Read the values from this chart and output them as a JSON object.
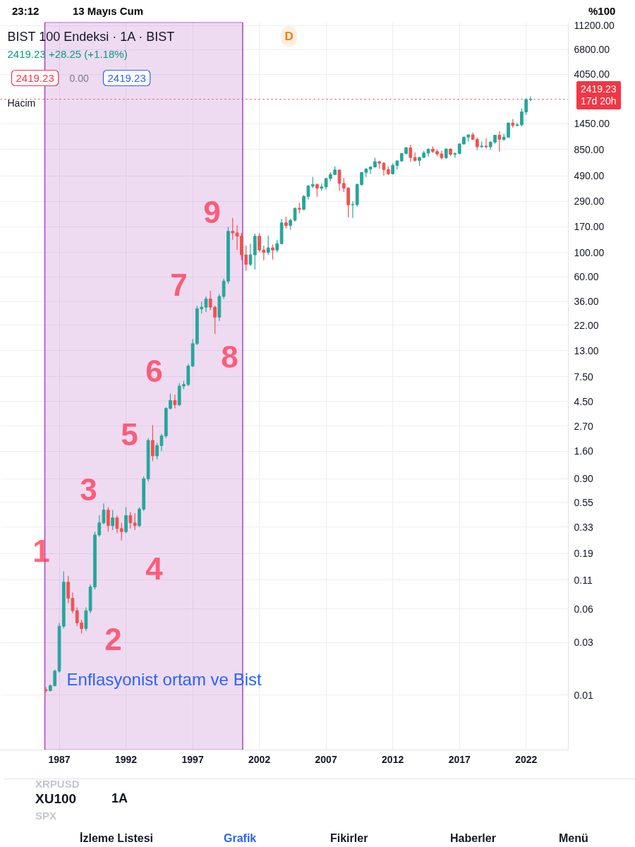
{
  "chart_data": {
    "type": "candlestick",
    "title": "BIST 100 Endeksi · 1A · BIST",
    "subtitle": "2419.23 +28.25 (+1.18%)",
    "x": [
      "1986-01",
      "1986-05",
      "1986-09",
      "1987-01",
      "1987-05",
      "1987-09",
      "1988-01",
      "1988-05",
      "1988-09",
      "1989-01",
      "1989-05",
      "1989-09",
      "1990-01",
      "1990-05",
      "1990-09",
      "1991-01",
      "1991-05",
      "1991-09",
      "1992-01",
      "1992-05",
      "1992-09",
      "1993-01",
      "1993-05",
      "1993-09",
      "1994-01",
      "1994-05",
      "1994-09",
      "1995-01",
      "1995-05",
      "1995-09",
      "1996-01",
      "1996-05",
      "1996-09",
      "1997-01",
      "1997-05",
      "1997-09",
      "1998-01",
      "1998-05",
      "1998-09",
      "1999-01",
      "1999-05",
      "1999-09",
      "2000-01",
      "2000-05",
      "2000-09",
      "2001-01",
      "2001-05",
      "2001-09",
      "2002-01",
      "2002-05",
      "2002-09",
      "2003-01",
      "2003-05",
      "2003-09",
      "2004-01",
      "2004-05",
      "2004-09",
      "2005-01",
      "2005-05",
      "2005-09",
      "2006-01",
      "2006-05",
      "2006-09",
      "2007-01",
      "2007-05",
      "2007-09",
      "2008-01",
      "2008-05",
      "2008-09",
      "2009-01",
      "2009-05",
      "2009-09",
      "2010-01",
      "2010-05",
      "2010-09",
      "2011-01",
      "2011-05",
      "2011-09",
      "2012-01",
      "2012-05",
      "2012-09",
      "2013-01",
      "2013-05",
      "2013-09",
      "2014-01",
      "2014-05",
      "2014-09",
      "2015-01",
      "2015-05",
      "2015-09",
      "2016-01",
      "2016-05",
      "2016-09",
      "2017-01",
      "2017-05",
      "2017-09",
      "2018-01",
      "2018-05",
      "2018-09",
      "2019-01",
      "2019-05",
      "2019-09",
      "2020-01",
      "2020-05",
      "2020-09",
      "2021-01",
      "2021-05",
      "2021-09",
      "2022-01",
      "2022-05"
    ],
    "ohlc": [
      [
        0.0112,
        0.0118,
        0.0106,
        0.011
      ],
      [
        0.011,
        0.0125,
        0.0108,
        0.0122
      ],
      [
        0.0122,
        0.017,
        0.012,
        0.0165
      ],
      [
        0.0165,
        0.045,
        0.016,
        0.042
      ],
      [
        0.042,
        0.131,
        0.04,
        0.105
      ],
      [
        0.105,
        0.12,
        0.068,
        0.075
      ],
      [
        0.075,
        0.085,
        0.055,
        0.058
      ],
      [
        0.058,
        0.062,
        0.042,
        0.045
      ],
      [
        0.045,
        0.048,
        0.036,
        0.04
      ],
      [
        0.04,
        0.062,
        0.038,
        0.058
      ],
      [
        0.058,
        0.1,
        0.055,
        0.095
      ],
      [
        0.095,
        0.3,
        0.09,
        0.28
      ],
      [
        0.28,
        0.42,
        0.27,
        0.36
      ],
      [
        0.36,
        0.54,
        0.35,
        0.47
      ],
      [
        0.47,
        0.5,
        0.3,
        0.34
      ],
      [
        0.34,
        0.47,
        0.31,
        0.4
      ],
      [
        0.4,
        0.42,
        0.29,
        0.32
      ],
      [
        0.32,
        0.36,
        0.25,
        0.3
      ],
      [
        0.3,
        0.5,
        0.29,
        0.42
      ],
      [
        0.42,
        0.45,
        0.32,
        0.36
      ],
      [
        0.36,
        0.44,
        0.31,
        0.34
      ],
      [
        0.34,
        0.5,
        0.33,
        0.48
      ],
      [
        0.48,
        0.95,
        0.46,
        0.9
      ],
      [
        0.9,
        2.1,
        0.85,
        2.0
      ],
      [
        2.0,
        2.75,
        1.3,
        1.45
      ],
      [
        1.45,
        1.9,
        1.35,
        1.8
      ],
      [
        1.8,
        2.3,
        1.6,
        2.2
      ],
      [
        2.2,
        4.0,
        2.1,
        3.9
      ],
      [
        3.9,
        5.3,
        3.8,
        4.6
      ],
      [
        4.6,
        5.2,
        3.9,
        4.2
      ],
      [
        4.2,
        6.6,
        4.1,
        6.2
      ],
      [
        6.2,
        6.9,
        5.8,
        6.4
      ],
      [
        6.4,
        9.8,
        6.2,
        9.4
      ],
      [
        9.4,
        16.5,
        9.2,
        15
      ],
      [
        15,
        33,
        14.5,
        31
      ],
      [
        31,
        36,
        28,
        32
      ],
      [
        32,
        40,
        29,
        38
      ],
      [
        38,
        45,
        30,
        32
      ],
      [
        32,
        33,
        18.3,
        26
      ],
      [
        26,
        42,
        24,
        40
      ],
      [
        40,
        58,
        38,
        55
      ],
      [
        55,
        170,
        52,
        155
      ],
      [
        155,
        205,
        130,
        150
      ],
      [
        150,
        175,
        105,
        140
      ],
      [
        140,
        150,
        85,
        95
      ],
      [
        95,
        115,
        68,
        78
      ],
      [
        78,
        120,
        75,
        95
      ],
      [
        95,
        148,
        70,
        140
      ],
      [
        140,
        150,
        100,
        105
      ],
      [
        105,
        115,
        85,
        100
      ],
      [
        100,
        142,
        95,
        110
      ],
      [
        110,
        118,
        86,
        105
      ],
      [
        105,
        130,
        100,
        120
      ],
      [
        120,
        200,
        118,
        185
      ],
      [
        185,
        210,
        165,
        175
      ],
      [
        175,
        200,
        160,
        195
      ],
      [
        195,
        255,
        190,
        250
      ],
      [
        250,
        280,
        225,
        245
      ],
      [
        245,
        330,
        240,
        320
      ],
      [
        320,
        405,
        300,
        398
      ],
      [
        398,
        480,
        380,
        410
      ],
      [
        410,
        420,
        318,
        380
      ],
      [
        380,
        420,
        360,
        391
      ],
      [
        391,
        470,
        370,
        465
      ],
      [
        465,
        530,
        440,
        505
      ],
      [
        505,
        598,
        500,
        555
      ],
      [
        555,
        560,
        360,
        420
      ],
      [
        420,
        470,
        350,
        380
      ],
      [
        380,
        390,
        208,
        269
      ],
      [
        269,
        290,
        205,
        270
      ],
      [
        270,
        420,
        260,
        410
      ],
      [
        410,
        530,
        400,
        528
      ],
      [
        528,
        580,
        480,
        565
      ],
      [
        565,
        600,
        510,
        590
      ],
      [
        590,
        716,
        585,
        660
      ],
      [
        660,
        670,
        570,
        640
      ],
      [
        640,
        650,
        495,
        560
      ],
      [
        560,
        600,
        500,
        513
      ],
      [
        513,
        640,
        505,
        610
      ],
      [
        610,
        680,
        560,
        670
      ],
      [
        670,
        790,
        660,
        782
      ],
      [
        782,
        900,
        770,
        880
      ],
      [
        880,
        940,
        660,
        720
      ],
      [
        720,
        800,
        660,
        678
      ],
      [
        678,
        730,
        607,
        720
      ],
      [
        720,
        825,
        715,
        790
      ],
      [
        790,
        870,
        730,
        857
      ],
      [
        857,
        910,
        790,
        815
      ],
      [
        815,
        850,
        740,
        775
      ],
      [
        775,
        830,
        690,
        717
      ],
      [
        717,
        865,
        700,
        860
      ],
      [
        860,
        868,
        740,
        770
      ],
      [
        770,
        800,
        715,
        781
      ],
      [
        781,
        960,
        770,
        955
      ],
      [
        955,
        1110,
        940,
        1100
      ],
      [
        1100,
        1160,
        1000,
        1153
      ],
      [
        1153,
        1210,
        1040,
        1050
      ],
      [
        1050,
        1090,
        840,
        900
      ],
      [
        900,
        1000,
        880,
        913
      ],
      [
        913,
        1070,
        870,
        900
      ],
      [
        900,
        1010,
        845,
        990
      ],
      [
        990,
        1150,
        960,
        1144
      ],
      [
        1144,
        1240,
        813,
        1050
      ],
      [
        1050,
        1180,
        1020,
        1100
      ],
      [
        1100,
        1490,
        1080,
        1476
      ],
      [
        1476,
        1600,
        1340,
        1400
      ],
      [
        1400,
        1480,
        1380,
        1420
      ],
      [
        1420,
        2000,
        1380,
        1858
      ],
      [
        1858,
        2480,
        1750,
        2400
      ],
      [
        2400,
        2560,
        2320,
        2419.23
      ]
    ],
    "colors": [
      "#ef5350",
      "#26a69a",
      "#26a69a",
      "#26a69a",
      "#26a69a",
      "#ef5350",
      "#ef5350",
      "#ef5350",
      "#ef5350",
      "#26a69a",
      "#26a69a",
      "#26a69a",
      "#26a69a",
      "#26a69a",
      "#ef5350",
      "#26a69a",
      "#ef5350",
      "#ef5350",
      "#26a69a",
      "#ef5350",
      "#ef5350",
      "#26a69a",
      "#26a69a",
      "#26a69a",
      "#ef5350",
      "#26a69a",
      "#26a69a",
      "#26a69a",
      "#26a69a",
      "#ef5350",
      "#26a69a",
      "#26a69a",
      "#26a69a",
      "#26a69a",
      "#26a69a",
      "#26a69a",
      "#26a69a",
      "#ef5350",
      "#ef5350",
      "#26a69a",
      "#26a69a",
      "#26a69a",
      "#ef5350",
      "#ef5350",
      "#ef5350",
      "#ef5350",
      "#26a69a",
      "#26a69a",
      "#ef5350",
      "#ef5350",
      "#26a69a",
      "#ef5350",
      "#26a69a",
      "#26a69a",
      "#ef5350",
      "#26a69a",
      "#26a69a",
      "#ef5350",
      "#26a69a",
      "#26a69a",
      "#26a69a",
      "#ef5350",
      "#26a69a",
      "#26a69a",
      "#26a69a",
      "#26a69a",
      "#ef5350",
      "#ef5350",
      "#ef5350",
      "#26a69a",
      "#26a69a",
      "#26a69a",
      "#26a69a",
      "#26a69a",
      "#26a69a",
      "#ef5350",
      "#ef5350",
      "#ef5350",
      "#26a69a",
      "#26a69a",
      "#26a69a",
      "#26a69a",
      "#ef5350",
      "#ef5350",
      "#26a69a",
      "#26a69a",
      "#26a69a",
      "#ef5350",
      "#ef5350",
      "#ef5350",
      "#26a69a",
      "#ef5350",
      "#26a69a",
      "#26a69a",
      "#26a69a",
      "#26a69a",
      "#ef5350",
      "#ef5350",
      "#26a69a",
      "#ef5350",
      "#26a69a",
      "#26a69a",
      "#ef5350",
      "#26a69a",
      "#26a69a",
      "#ef5350",
      "#26a69a",
      "#26a69a",
      "#26a69a",
      "#26a69a"
    ],
    "xlim": [
      "1982-08",
      "2025-03"
    ],
    "xticks": [
      "1987",
      "1992",
      "1997",
      "2002",
      "2007",
      "2012",
      "2017",
      "2022"
    ],
    "ylim": [
      0.0032,
      12000
    ],
    "yticks": [
      {
        "value": 11200,
        "label": "11200.00"
      },
      {
        "value": 6800,
        "label": "6800.00"
      },
      {
        "value": 4050,
        "label": "4050.00"
      },
      {
        "value": 1450,
        "label": "1450.00"
      },
      {
        "value": 850,
        "label": "850.00"
      },
      {
        "value": 490,
        "label": "490.00"
      },
      {
        "value": 290,
        "label": "290.00"
      },
      {
        "value": 170,
        "label": "170.00"
      },
      {
        "value": 100,
        "label": "100.00"
      },
      {
        "value": 60,
        "label": "60.00"
      },
      {
        "value": 36,
        "label": "36.00"
      },
      {
        "value": 22,
        "label": "22.00"
      },
      {
        "value": 13,
        "label": "13.00"
      },
      {
        "value": 7.5,
        "label": "7.50"
      },
      {
        "value": 4.5,
        "label": "4.50"
      },
      {
        "value": 2.7,
        "label": "2.70"
      },
      {
        "value": 1.6,
        "label": "1.60"
      },
      {
        "value": 0.9,
        "label": "0.90"
      },
      {
        "value": 0.55,
        "label": "0.55"
      },
      {
        "value": 0.33,
        "label": "0.33"
      },
      {
        "value": 0.19,
        "label": "0.19"
      },
      {
        "value": 0.11,
        "label": "0.11"
      },
      {
        "value": 0.06,
        "label": "0.06"
      },
      {
        "value": 0.03,
        "label": "0.03"
      },
      {
        "value": 0.01,
        "label": "0.01"
      }
    ],
    "log": true,
    "grid": true,
    "ref_lines": [
      {
        "axis": "y",
        "value": 2419.23,
        "label": "2419.23\n17d 20h",
        "color": "#f23645",
        "line_style": "dotted"
      }
    ],
    "bands": [
      {
        "axis": "x",
        "from": "1985-12",
        "to": "2000-10",
        "label": "Enflasyonist ortam ve Bist",
        "color": "#9c27b0"
      }
    ],
    "annotations": [
      "23:12",
      "13 Mayıs Cum",
      "%100",
      "2419.23",
      "0.00",
      "2419.23",
      "Hacim",
      "D",
      "XRPUSD",
      "XU100",
      "SPX",
      "1A",
      "İzleme Listesi",
      "Grafik",
      "Fikirler",
      "Haberler",
      "Menü",
      "1",
      "2",
      "3",
      "4",
      "5",
      "6",
      "7",
      "8",
      "9"
    ]
  }
}
